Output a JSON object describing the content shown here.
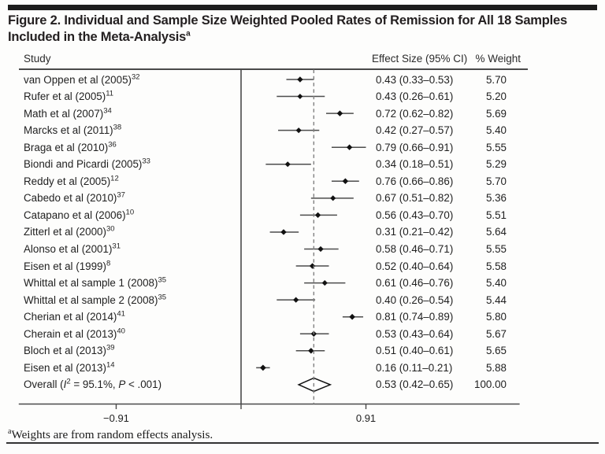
{
  "figure": {
    "title_line1": "Figure 2. Individual and Sample Size Weighted Pooled Rates of Remission for All 18 Samples",
    "title_line2": "Included in the Meta-Analysis",
    "title_sup": "a",
    "footnote_sup": "a",
    "footnote": "Weights are from random effects analysis."
  },
  "columns": {
    "study": "Study",
    "effect": "Effect Size (95% CI)",
    "weight": "% Weight"
  },
  "overall_label": {
    "prefix": "Overall (",
    "stat_i": "I",
    "stat_i_sup": "2",
    "mid": " = 95.1%, ",
    "stat_p": "P",
    "suffix": " < .001)"
  },
  "chart_data": {
    "type": "scatter",
    "variant": "forest-plot",
    "title": "Individual and Sample Size Weighted Pooled Rates of Remission for All 18 Samples Included in the Meta-Analysis",
    "xlabel": "",
    "ylabel": "Study",
    "x_domain": [
      -1.62,
      2.03
    ],
    "x_ticks": [
      {
        "value": -0.91,
        "label": "−0.91"
      },
      {
        "value": 0,
        "label": ""
      },
      {
        "value": 0.91,
        "label": "0.91"
      }
    ],
    "zero_line": 0,
    "overall_dashed_line": 0.53,
    "grid": false,
    "legend": "none",
    "studies": [
      {
        "study": "van Oppen et al (2005)",
        "ref": "32",
        "es": 0.43,
        "lo": 0.33,
        "hi": 0.53,
        "es_text": "0.43 (0.33–0.53)",
        "weight": 5.7,
        "weight_text": "5.70"
      },
      {
        "study": "Rufer et al (2005)",
        "ref": "11",
        "es": 0.43,
        "lo": 0.26,
        "hi": 0.61,
        "es_text": "0.43 (0.26–0.61)",
        "weight": 5.2,
        "weight_text": "5.20"
      },
      {
        "study": "Math et al (2007)",
        "ref": "34",
        "es": 0.72,
        "lo": 0.62,
        "hi": 0.82,
        "es_text": "0.72 (0.62–0.82)",
        "weight": 5.69,
        "weight_text": "5.69"
      },
      {
        "study": "Marcks et al (2011)",
        "ref": "38",
        "es": 0.42,
        "lo": 0.27,
        "hi": 0.57,
        "es_text": "0.42 (0.27–0.57)",
        "weight": 5.4,
        "weight_text": "5.40"
      },
      {
        "study": "Braga et al (2010)",
        "ref": "36",
        "es": 0.79,
        "lo": 0.66,
        "hi": 0.91,
        "es_text": "0.79 (0.66–0.91)",
        "weight": 5.55,
        "weight_text": "5.55"
      },
      {
        "study": "Biondi and Picardi (2005)",
        "ref": "33",
        "es": 0.34,
        "lo": 0.18,
        "hi": 0.51,
        "es_text": "0.34 (0.18–0.51)",
        "weight": 5.29,
        "weight_text": "5.29"
      },
      {
        "study": "Reddy et al (2005)",
        "ref": "12",
        "es": 0.76,
        "lo": 0.66,
        "hi": 0.86,
        "es_text": "0.76 (0.66–0.86)",
        "weight": 5.7,
        "weight_text": "5.70"
      },
      {
        "study": "Cabedo et al (2010)",
        "ref": "37",
        "es": 0.67,
        "lo": 0.51,
        "hi": 0.82,
        "es_text": "0.67 (0.51–0.82)",
        "weight": 5.36,
        "weight_text": "5.36"
      },
      {
        "study": "Catapano et al (2006)",
        "ref": "10",
        "es": 0.56,
        "lo": 0.43,
        "hi": 0.7,
        "es_text": "0.56 (0.43–0.70)",
        "weight": 5.51,
        "weight_text": "5.51"
      },
      {
        "study": "Zitterl et al (2000)",
        "ref": "30",
        "es": 0.31,
        "lo": 0.21,
        "hi": 0.42,
        "es_text": "0.31 (0.21–0.42)",
        "weight": 5.64,
        "weight_text": "5.64"
      },
      {
        "study": "Alonso et al (2001)",
        "ref": "31",
        "es": 0.58,
        "lo": 0.46,
        "hi": 0.71,
        "es_text": "0.58 (0.46–0.71)",
        "weight": 5.55,
        "weight_text": "5.55"
      },
      {
        "study": "Eisen et al (1999)",
        "ref": "8",
        "es": 0.52,
        "lo": 0.4,
        "hi": 0.64,
        "es_text": "0.52 (0.40–0.64)",
        "weight": 5.58,
        "weight_text": "5.58"
      },
      {
        "study": "Whittal et al sample 1 (2008)",
        "ref": "35",
        "es": 0.61,
        "lo": 0.46,
        "hi": 0.76,
        "es_text": "0.61 (0.46–0.76)",
        "weight": 5.4,
        "weight_text": "5.40"
      },
      {
        "study": "Whittal et al sample 2 (2008)",
        "ref": "35",
        "es": 0.4,
        "lo": 0.26,
        "hi": 0.54,
        "es_text": "0.40 (0.26–0.54)",
        "weight": 5.44,
        "weight_text": "5.44"
      },
      {
        "study": "Cherian et al (2014)",
        "ref": "41",
        "es": 0.81,
        "lo": 0.74,
        "hi": 0.89,
        "es_text": "0.81 (0.74–0.89)",
        "weight": 5.8,
        "weight_text": "5.80"
      },
      {
        "study": "Cherain et al (2013)",
        "ref": "40",
        "es": 0.53,
        "lo": 0.43,
        "hi": 0.64,
        "es_text": "0.53 (0.43–0.64)",
        "weight": 5.67,
        "weight_text": "5.67"
      },
      {
        "study": "Bloch et al (2013)",
        "ref": "39",
        "es": 0.51,
        "lo": 0.4,
        "hi": 0.61,
        "es_text": "0.51 (0.40–0.61)",
        "weight": 5.65,
        "weight_text": "5.65"
      },
      {
        "study": "Eisen et al (2013)",
        "ref": "14",
        "es": 0.16,
        "lo": 0.11,
        "hi": 0.21,
        "es_text": "0.16 (0.11–0.21)",
        "weight": 5.88,
        "weight_text": "5.88"
      }
    ],
    "overall": {
      "label_plain": "Overall (I2 = 95.1%, P < .001)",
      "i_squared_pct": 95.1,
      "p_value": "< .001",
      "es": 0.53,
      "lo": 0.42,
      "hi": 0.65,
      "es_text": "0.53 (0.42–0.65)",
      "weight": 100.0,
      "weight_text": "100.00"
    },
    "colors": {
      "text": "#1f1f1f",
      "ci_line": "#4d4d4d",
      "marker": "#111111",
      "zero_line": "#4a4a4a",
      "dashed_line": "#808080",
      "axis": "#4a4a4a",
      "rule": "#1c1c1c"
    }
  }
}
